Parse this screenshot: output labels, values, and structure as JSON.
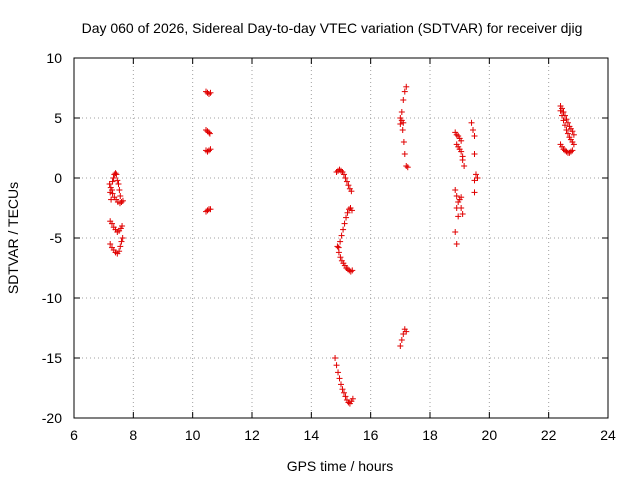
{
  "chart_data": {
    "type": "scatter",
    "title": "Day 060 of 2026, Sidereal Day-to-day VTEC variation (SDTVAR) for receiver djig",
    "xlabel": "GPS time / hours",
    "ylabel": "SDTVAR / TECUs",
    "xlim": [
      6,
      24
    ],
    "ylim": [
      -20,
      10
    ],
    "xticks": [
      6,
      8,
      10,
      12,
      14,
      16,
      18,
      20,
      22,
      24
    ],
    "yticks": [
      -20,
      -15,
      -10,
      -5,
      0,
      5,
      10
    ],
    "grid": true,
    "marker": "+",
    "color": "#e00000",
    "series": [
      {
        "name": "SDTVAR",
        "x": [
          7.2,
          7.22,
          7.25,
          7.28,
          7.3,
          7.33,
          7.36,
          7.4,
          7.43,
          7.46,
          7.5,
          7.53,
          7.56,
          7.24,
          7.3,
          7.36,
          7.42,
          7.48,
          7.55,
          7.6,
          7.65,
          7.22,
          7.28,
          7.34,
          7.4,
          7.46,
          7.52,
          7.58,
          7.62,
          7.22,
          7.28,
          7.34,
          7.4,
          7.46,
          7.52,
          7.56,
          7.6,
          7.64,
          10.45,
          10.5,
          10.55,
          10.6,
          10.45,
          10.5,
          10.55,
          10.58,
          10.45,
          10.5,
          10.55,
          10.6,
          10.45,
          10.5,
          10.55,
          10.6,
          14.8,
          14.85,
          14.9,
          14.95,
          15.0,
          15.05,
          15.1,
          15.15,
          15.2,
          15.25,
          15.3,
          15.35,
          15.4,
          14.92,
          14.97,
          15.02,
          15.07,
          15.12,
          15.17,
          15.22,
          15.27,
          15.32,
          15.37,
          14.88,
          14.93,
          14.98,
          15.03,
          15.08,
          15.13,
          15.18,
          15.23,
          15.28,
          15.33,
          15.38,
          14.85,
          14.9,
          14.95,
          15.0,
          15.05,
          15.1,
          15.15,
          15.2,
          15.25,
          15.3,
          15.35,
          17.0,
          17.05,
          17.1,
          17.15,
          17.2,
          17.0,
          17.05,
          17.1,
          17.15,
          17.2,
          17.08,
          17.12,
          17.15,
          17.2,
          17.25,
          17.0,
          17.05,
          17.1,
          18.85,
          18.9,
          18.95,
          19.0,
          19.05,
          18.9,
          18.95,
          19.0,
          19.05,
          19.1,
          18.85,
          18.9,
          18.95,
          19.0,
          19.05,
          18.9,
          18.95,
          18.85,
          18.9,
          19.05,
          19.1,
          19.1,
          19.15,
          19.4,
          19.45,
          19.5,
          19.5,
          19.55,
          19.6,
          19.5,
          19.5,
          22.4,
          22.45,
          22.5,
          22.55,
          22.6,
          22.65,
          22.7,
          22.75,
          22.8,
          22.85,
          22.4,
          22.45,
          22.5,
          22.55,
          22.6,
          22.65,
          22.7,
          22.75,
          22.8,
          22.85,
          22.4,
          22.45,
          22.5,
          22.55,
          22.6,
          22.65,
          22.7,
          22.75,
          22.8
        ],
        "y": [
          -0.5,
          -1.2,
          -1.8,
          -1.0,
          -0.3,
          0.0,
          0.3,
          0.4,
          0.3,
          -0.2,
          -0.5,
          -1.0,
          -1.5,
          -0.8,
          -1.3,
          -1.6,
          -1.8,
          -2.0,
          -2.1,
          -2.0,
          -1.9,
          -3.6,
          -3.8,
          -4.1,
          -4.3,
          -4.5,
          -4.4,
          -4.2,
          -4.0,
          -5.5,
          -5.8,
          -6.0,
          -6.2,
          -6.3,
          -6.1,
          -5.7,
          -5.3,
          -5.0,
          7.2,
          7.1,
          7.0,
          7.1,
          4.0,
          3.9,
          3.8,
          3.7,
          2.3,
          2.2,
          2.3,
          2.4,
          -2.8,
          -2.7,
          -2.6,
          -2.6,
          -15.0,
          -15.6,
          -16.2,
          -16.7,
          -17.2,
          -17.6,
          -17.9,
          -18.2,
          -18.5,
          -18.7,
          -18.8,
          -18.6,
          -18.4,
          -5.8,
          -5.3,
          -4.8,
          -4.3,
          -3.8,
          -3.3,
          -2.9,
          -2.6,
          -2.5,
          -2.7,
          -5.7,
          -6.2,
          -6.6,
          -6.9,
          -7.1,
          -7.3,
          -7.5,
          -7.6,
          -7.7,
          -7.8,
          -7.7,
          0.5,
          0.6,
          0.7,
          0.6,
          0.5,
          0.3,
          0.0,
          -0.3,
          -0.6,
          -0.9,
          -1.1,
          4.5,
          5.5,
          6.5,
          7.2,
          7.6,
          -14.0,
          -13.5,
          -13.0,
          -12.6,
          -12.8,
          4.0,
          3.0,
          2.0,
          1.0,
          0.9,
          5.0,
          4.8,
          4.6,
          3.8,
          3.6,
          3.5,
          3.3,
          3.1,
          2.8,
          2.6,
          2.4,
          2.2,
          1.8,
          -1.0,
          -1.5,
          -2.0,
          -1.8,
          -1.6,
          -2.5,
          -3.2,
          -4.5,
          -5.5,
          -2.5,
          -3.0,
          1.5,
          1.0,
          4.6,
          4.0,
          3.5,
          2.0,
          0.3,
          0.0,
          -0.2,
          -1.2,
          6.0,
          5.8,
          5.5,
          5.2,
          4.9,
          4.6,
          4.3,
          4.1,
          3.9,
          3.6,
          5.6,
          5.2,
          4.8,
          4.4,
          4.0,
          3.7,
          3.4,
          3.2,
          3.0,
          2.8,
          2.8,
          2.6,
          2.4,
          2.3,
          2.2,
          2.1,
          2.1,
          2.2,
          2.3
        ]
      }
    ]
  }
}
